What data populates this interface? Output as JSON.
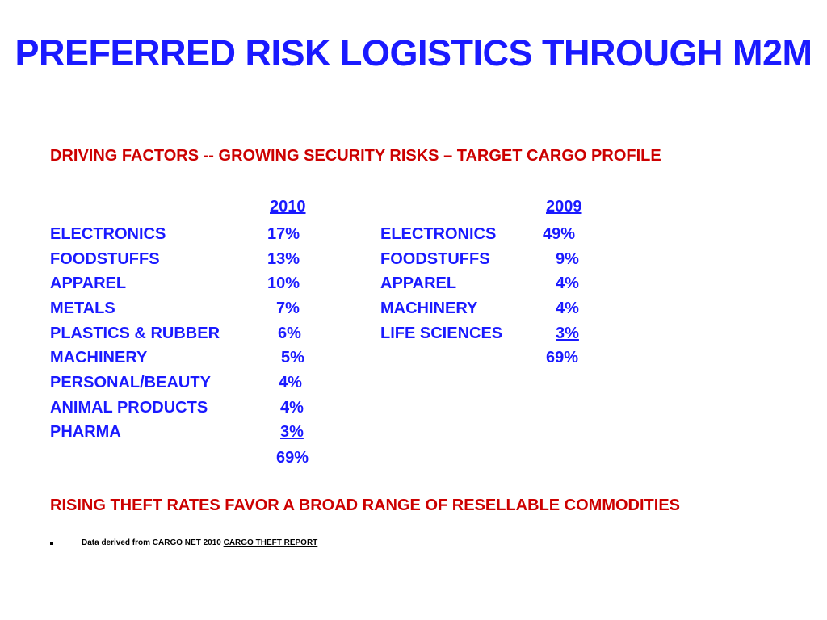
{
  "title": "PREFERRED RISK LOGISTICS THROUGH M2M",
  "subtitle": "DRIVING FACTORS -- GROWING SECURITY RISKS – TARGET CARGO PROFILE",
  "col2010": {
    "header": "2010",
    "rows": [
      {
        "label": "ELECTRONICS",
        "value": "17%"
      },
      {
        "label": "FOODSTUFFS",
        "value": "13%"
      },
      {
        "label": "APPAREL",
        "value": "10%"
      },
      {
        "label": "METALS",
        "value": "7%"
      },
      {
        "label": "PLASTICS & RUBBER",
        "value": "6%"
      },
      {
        "label": "MACHINERY",
        "value": "5%"
      },
      {
        "label": "PERSONAL/BEAUTY",
        "value": "4%"
      },
      {
        "label": "ANIMAL PRODUCTS",
        "value": "4%"
      },
      {
        "label": "PHARMA",
        "value": "3%"
      }
    ],
    "total": "69%"
  },
  "col2009": {
    "header": "2009",
    "rows": [
      {
        "label": "ELECTRONICS",
        "value": "49%"
      },
      {
        "label": "FOODSTUFFS",
        "value": "9%"
      },
      {
        "label": "APPAREL",
        "value": "4%"
      },
      {
        "label": "MACHINERY",
        "value": "4%"
      },
      {
        "label": "LIFE SCIENCES",
        "value": "3%"
      }
    ],
    "total": "69%"
  },
  "conclusion": "RISING THEFT RATES FAVOR A BROAD RANGE OF RESELLABLE COMMODITIES",
  "footnote": {
    "prefix": "Data derived from CARGO NET 2010 ",
    "link": "CARGO THEFT REPORT"
  }
}
